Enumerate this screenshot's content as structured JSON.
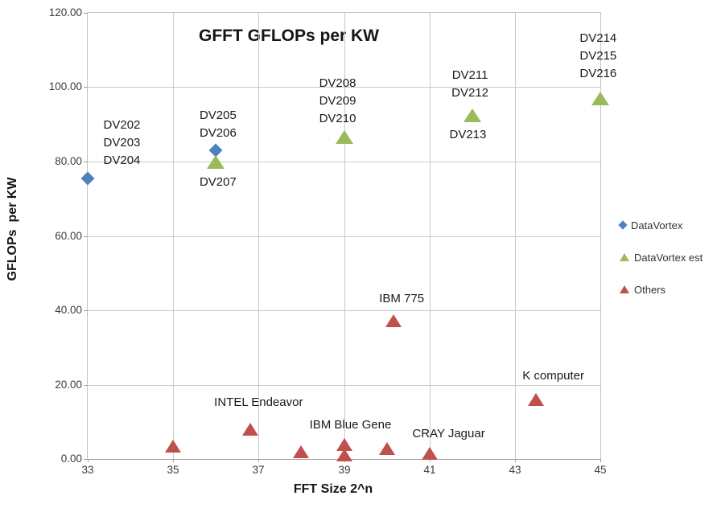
{
  "chart_data": {
    "type": "scatter",
    "title": "GFFT GFLOPs per KW",
    "xlabel": "FFT Size 2^n",
    "ylabel": "GFLOPs  per KW",
    "xlim": [
      33,
      45
    ],
    "ylim": [
      0,
      120
    ],
    "x_ticks": [
      33,
      35,
      37,
      39,
      41,
      43,
      45
    ],
    "x_tick_labels": [
      "33",
      "35",
      "37",
      "39",
      "41",
      "43",
      "45"
    ],
    "y_ticks": [
      0,
      20,
      40,
      60,
      80,
      100,
      120
    ],
    "y_tick_labels": [
      "0.00",
      "20.00",
      "40.00",
      "60.00",
      "80.00",
      "100.00",
      "120.00"
    ],
    "grid": true,
    "legend_position": "right",
    "series": [
      {
        "name": "DataVortex",
        "marker": "diamond",
        "color": "#4F81BD",
        "points": [
          [
            33,
            75.5
          ],
          [
            36,
            83
          ]
        ]
      },
      {
        "name": "DataVortex est",
        "marker": "triangle",
        "color": "#9BBB59",
        "points": [
          [
            36,
            80
          ],
          [
            39,
            86.5
          ],
          [
            42,
            92.5
          ],
          [
            45,
            97
          ]
        ]
      },
      {
        "name": "Others",
        "marker": "triangle",
        "color": "#C0504D",
        "points": [
          [
            35,
            3.5
          ],
          [
            36.8,
            8
          ],
          [
            38,
            2
          ],
          [
            39,
            4
          ],
          [
            39,
            1
          ],
          [
            40.15,
            37.2
          ],
          [
            40,
            2.8
          ],
          [
            41,
            1.5
          ],
          [
            43.5,
            16
          ]
        ]
      }
    ],
    "annotations": [
      {
        "text": "DV202\nDV203\nDV204",
        "x": 33.8,
        "y": 85
      },
      {
        "text": "DV205\nDV206",
        "x": 36.05,
        "y": 90
      },
      {
        "text": "DV207",
        "x": 36.05,
        "y": 74.4
      },
      {
        "text": "DV208\nDV209\nDV210",
        "x": 38.85,
        "y": 96.2
      },
      {
        "text": "DV211\nDV212",
        "x": 41.95,
        "y": 100.7
      },
      {
        "text": "DV213",
        "x": 41.9,
        "y": 87.1
      },
      {
        "text": "DV214\nDV215\nDV216",
        "x": 44.95,
        "y": 108.4
      },
      {
        "text": "IBM 775",
        "x": 40.35,
        "y": 43
      },
      {
        "text": "INTEL Endeavor",
        "x": 37.0,
        "y": 15.1
      },
      {
        "text": "IBM Blue Gene",
        "x": 39.15,
        "y": 9.1
      },
      {
        "text": "CRAY Jaguar",
        "x": 41.45,
        "y": 6.7
      },
      {
        "text": "K computer",
        "x": 43.9,
        "y": 22.3
      }
    ],
    "legend": [
      {
        "label": "DataVortex",
        "marker": "diamond",
        "color": "#4F81BD"
      },
      {
        "label": "DataVortex est",
        "marker": "triangle",
        "color": "#9BBB59"
      },
      {
        "label": "Others",
        "marker": "triangle",
        "color": "#C0504D"
      }
    ]
  }
}
